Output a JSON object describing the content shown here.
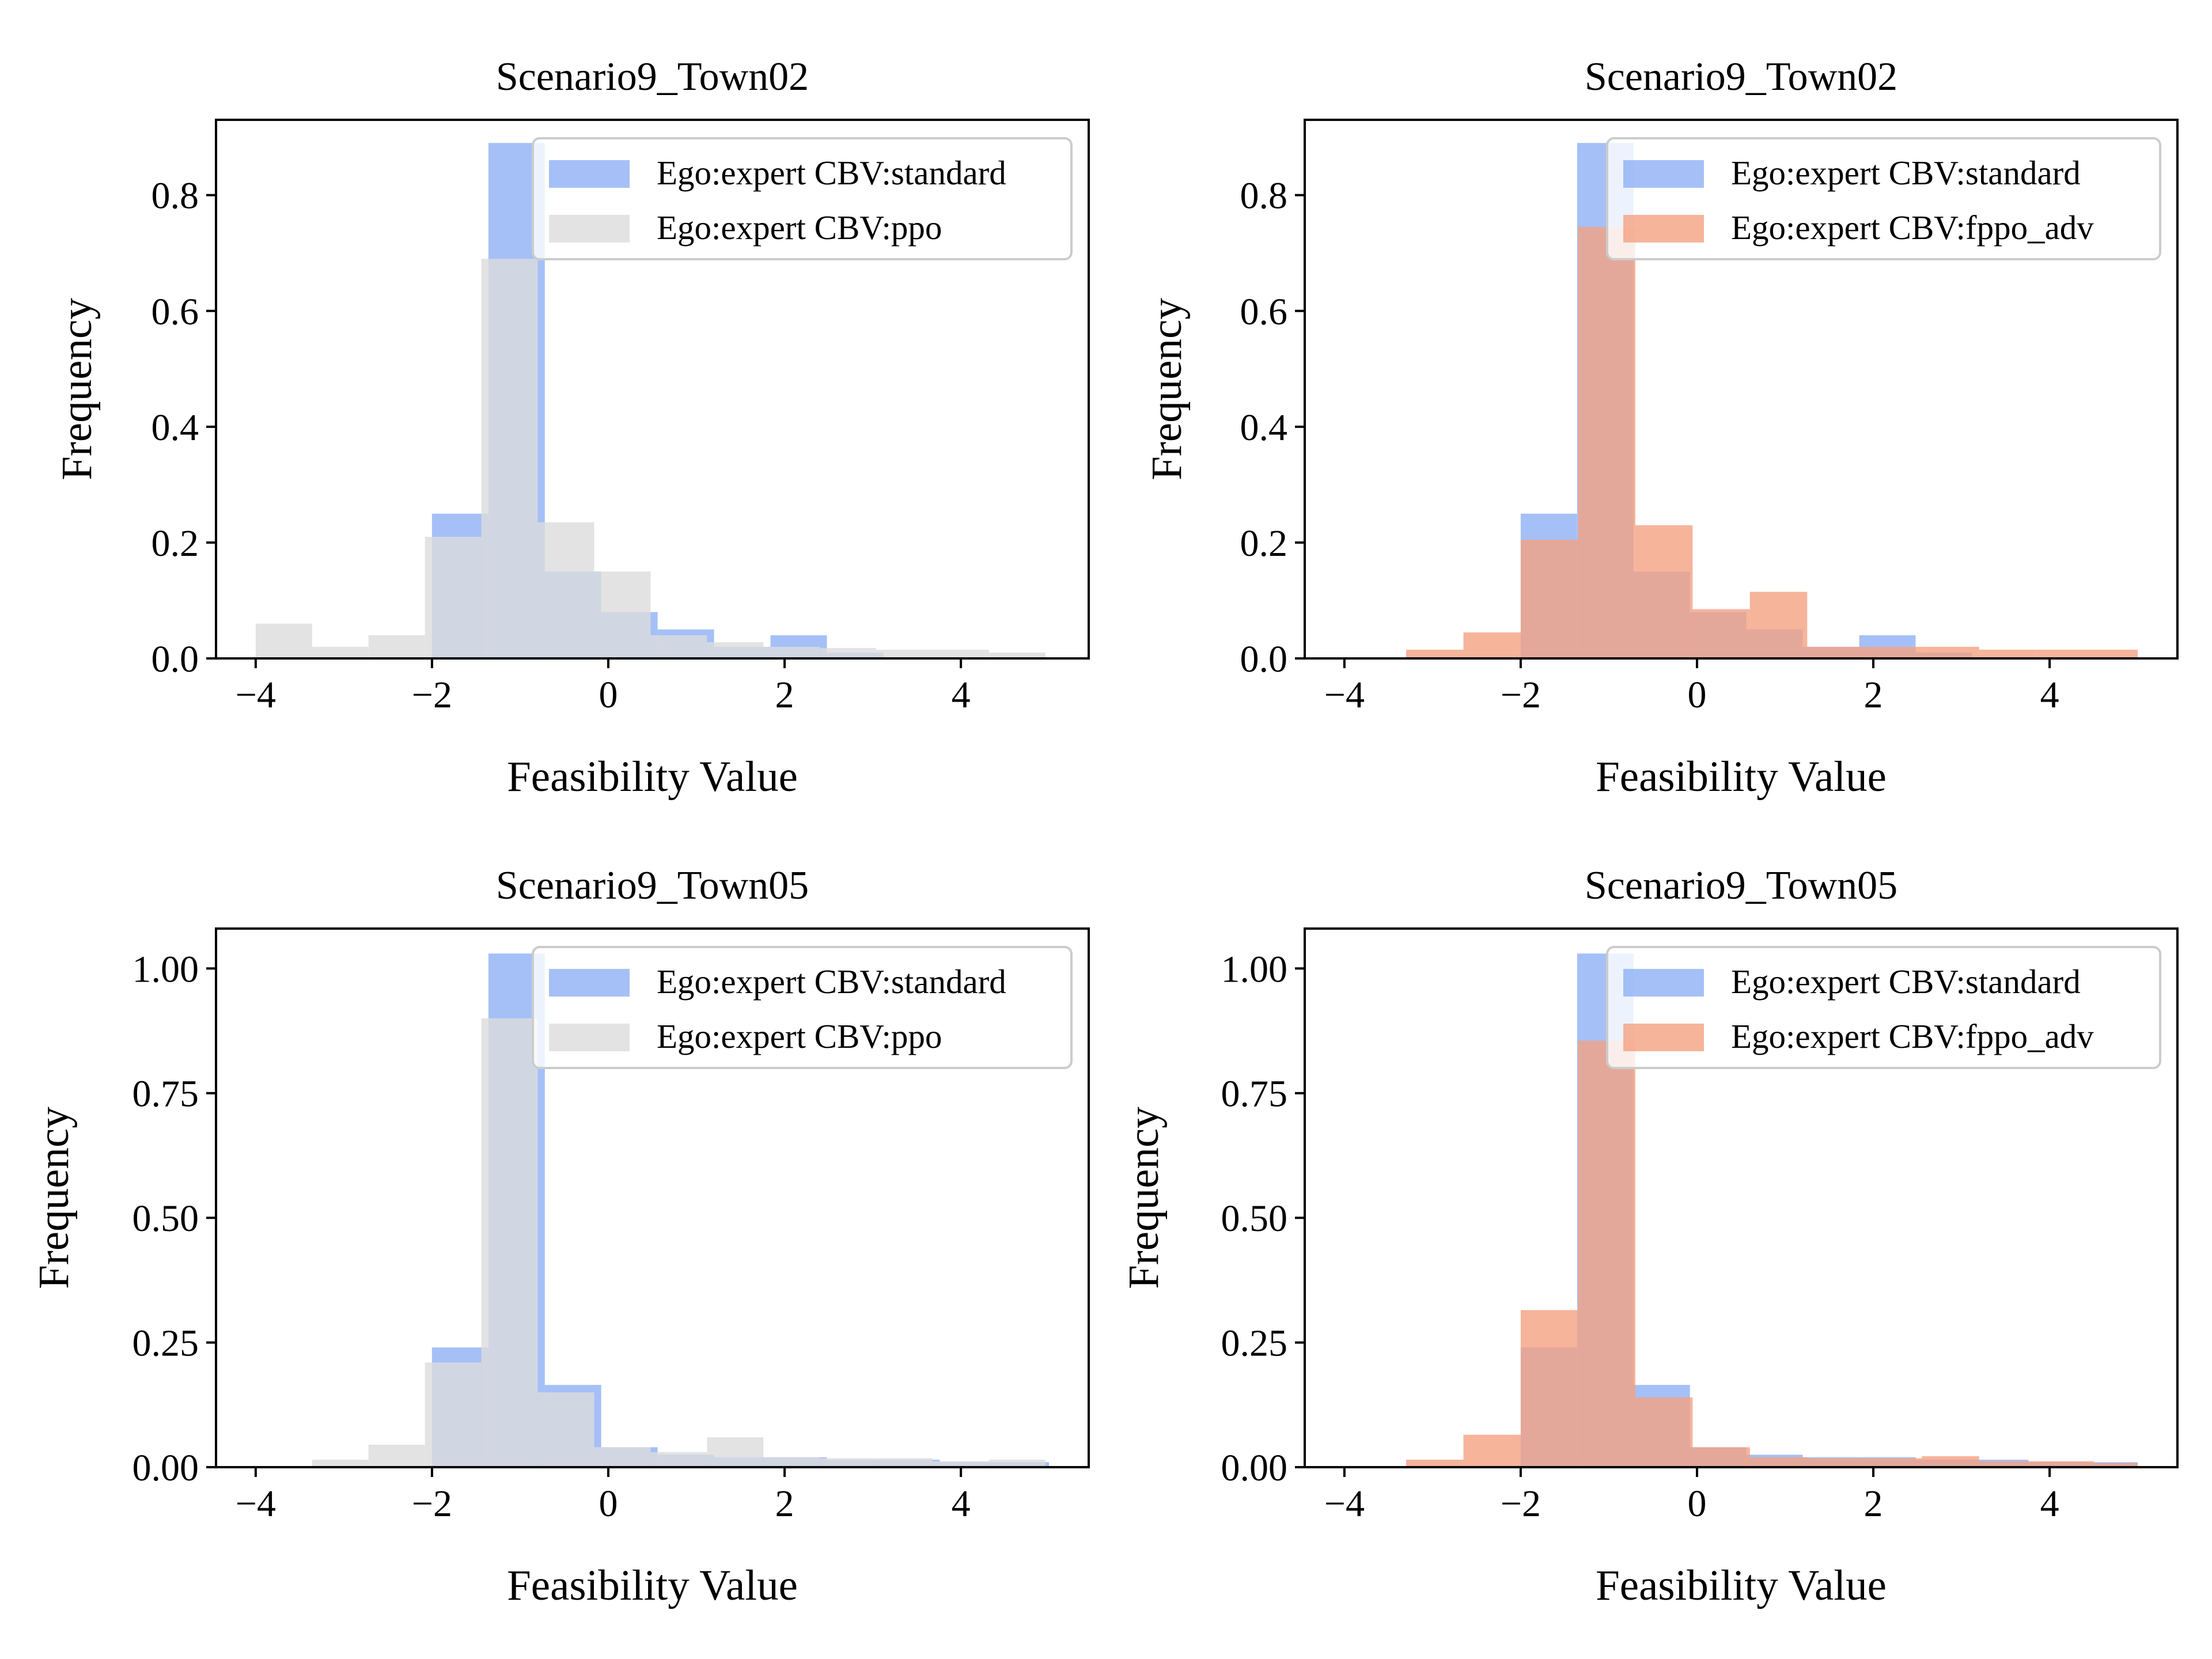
{
  "colors": {
    "standard": "#8fb0f5",
    "ppo": "#dcdcdc",
    "fppo_adv": "#f4a182"
  },
  "chart_data": [
    {
      "type": "bar",
      "title": "Scenario9_Town02",
      "xlabel": "Feasibility Value",
      "ylabel": "Frequency",
      "xlim": [
        -4.45,
        5.45
      ],
      "ylim": [
        0,
        0.93
      ],
      "xticks": [
        -4,
        -2,
        0,
        2,
        4
      ],
      "xtick_labels": [
        "−4",
        "−2",
        "0",
        "2",
        "4"
      ],
      "yticks": [
        0,
        0.2,
        0.4,
        0.6,
        0.8
      ],
      "ytick_labels": [
        "0.0",
        "0.2",
        "0.4",
        "0.6",
        "0.8"
      ],
      "legend_position": "top-right",
      "series": [
        {
          "name": "Ego:expert CBV:standard",
          "color": "standard",
          "bins": [
            [
              -2.0,
              -1.36,
              0.25
            ],
            [
              -1.36,
              -0.72,
              0.89
            ],
            [
              -0.72,
              -0.08,
              0.15
            ],
            [
              -0.08,
              0.56,
              0.08
            ],
            [
              0.56,
              1.2,
              0.05
            ],
            [
              1.2,
              1.84,
              0.02
            ],
            [
              1.84,
              2.48,
              0.04
            ],
            [
              2.48,
              3.12,
              0.01
            ]
          ]
        },
        {
          "name": "Ego:expert CBV:ppo",
          "color": "ppo",
          "bins": [
            [
              -4.0,
              -3.36,
              0.06
            ],
            [
              -3.36,
              -2.72,
              0.02
            ],
            [
              -2.72,
              -2.08,
              0.04
            ],
            [
              -2.08,
              -1.44,
              0.21
            ],
            [
              -1.44,
              -0.8,
              0.69
            ],
            [
              -0.8,
              -0.16,
              0.235
            ],
            [
              -0.16,
              0.48,
              0.15
            ],
            [
              0.48,
              1.12,
              0.04
            ],
            [
              1.12,
              1.76,
              0.028
            ],
            [
              1.76,
              2.4,
              0.02
            ],
            [
              2.4,
              3.04,
              0.018
            ],
            [
              3.04,
              3.68,
              0.015
            ],
            [
              3.68,
              4.32,
              0.015
            ],
            [
              4.32,
              4.96,
              0.01
            ]
          ]
        }
      ]
    },
    {
      "type": "bar",
      "title": "Scenario9_Town02",
      "xlabel": "Feasibility Value",
      "ylabel": "Frequency",
      "xlim": [
        -4.45,
        5.45
      ],
      "ylim": [
        0,
        0.93
      ],
      "xticks": [
        -4,
        -2,
        0,
        2,
        4
      ],
      "xtick_labels": [
        "−4",
        "−2",
        "0",
        "2",
        "4"
      ],
      "yticks": [
        0,
        0.2,
        0.4,
        0.6,
        0.8
      ],
      "ytick_labels": [
        "0.0",
        "0.2",
        "0.4",
        "0.6",
        "0.8"
      ],
      "legend_position": "top-right",
      "series": [
        {
          "name": "Ego:expert CBV:standard",
          "color": "standard",
          "bins": [
            [
              -2.0,
              -1.36,
              0.25
            ],
            [
              -1.36,
              -0.72,
              0.89
            ],
            [
              -0.72,
              -0.08,
              0.15
            ],
            [
              -0.08,
              0.56,
              0.08
            ],
            [
              0.56,
              1.2,
              0.05
            ],
            [
              1.2,
              1.84,
              0.02
            ],
            [
              1.84,
              2.48,
              0.04
            ],
            [
              2.48,
              3.12,
              0.01
            ]
          ]
        },
        {
          "name": "Ego:expert CBV:fppo_adv",
          "color": "fppo_adv",
          "bins": [
            [
              -3.3,
              -2.65,
              0.015
            ],
            [
              -2.65,
              -2.0,
              0.045
            ],
            [
              -2.0,
              -1.35,
              0.205
            ],
            [
              -1.35,
              -0.7,
              0.745
            ],
            [
              -0.7,
              -0.05,
              0.23
            ],
            [
              -0.05,
              0.6,
              0.085
            ],
            [
              0.6,
              1.25,
              0.115
            ],
            [
              1.25,
              1.9,
              0.02
            ],
            [
              1.9,
              2.55,
              0.02
            ],
            [
              2.55,
              3.2,
              0.02
            ],
            [
              3.2,
              3.85,
              0.015
            ],
            [
              3.85,
              4.5,
              0.015
            ],
            [
              4.5,
              5.0,
              0.015
            ]
          ]
        }
      ]
    },
    {
      "type": "bar",
      "title": "Scenario9_Town05",
      "xlabel": "Feasibility Value",
      "ylabel": "Frequency",
      "xlim": [
        -4.45,
        5.45
      ],
      "ylim": [
        0,
        1.08
      ],
      "xticks": [
        -4,
        -2,
        0,
        2,
        4
      ],
      "xtick_labels": [
        "−4",
        "−2",
        "0",
        "2",
        "4"
      ],
      "yticks": [
        0,
        0.25,
        0.5,
        0.75,
        1.0
      ],
      "ytick_labels": [
        "0.00",
        "0.25",
        "0.50",
        "0.75",
        "1.00"
      ],
      "legend_position": "top-right",
      "series": [
        {
          "name": "Ego:expert CBV:standard",
          "color": "standard",
          "bins": [
            [
              -2.0,
              -1.36,
              0.24
            ],
            [
              -1.36,
              -0.72,
              1.03
            ],
            [
              -0.72,
              -0.08,
              0.165
            ],
            [
              -0.08,
              0.56,
              0.04
            ],
            [
              0.56,
              1.2,
              0.025
            ],
            [
              1.2,
              1.84,
              0.02
            ],
            [
              1.84,
              2.48,
              0.02
            ],
            [
              2.48,
              3.12,
              0.015
            ],
            [
              3.12,
              3.76,
              0.015
            ],
            [
              3.76,
              4.4,
              0.01
            ],
            [
              4.4,
              5.0,
              0.01
            ]
          ]
        },
        {
          "name": "Ego:expert CBV:ppo",
          "color": "ppo",
          "bins": [
            [
              -3.36,
              -2.72,
              0.015
            ],
            [
              -2.72,
              -2.08,
              0.045
            ],
            [
              -2.08,
              -1.44,
              0.21
            ],
            [
              -1.44,
              -0.8,
              0.9
            ],
            [
              -0.8,
              -0.16,
              0.15
            ],
            [
              -0.16,
              0.48,
              0.04
            ],
            [
              0.48,
              1.12,
              0.03
            ],
            [
              1.12,
              1.76,
              0.06
            ],
            [
              1.76,
              2.4,
              0.02
            ],
            [
              2.4,
              3.04,
              0.018
            ],
            [
              3.04,
              3.68,
              0.018
            ],
            [
              3.68,
              4.32,
              0.012
            ],
            [
              4.32,
              4.96,
              0.015
            ]
          ]
        }
      ]
    },
    {
      "type": "bar",
      "title": "Scenario9_Town05",
      "xlabel": "Feasibility Value",
      "ylabel": "Frequency",
      "xlim": [
        -4.45,
        5.45
      ],
      "ylim": [
        0,
        1.08
      ],
      "xticks": [
        -4,
        -2,
        0,
        2,
        4
      ],
      "xtick_labels": [
        "−4",
        "−2",
        "0",
        "2",
        "4"
      ],
      "yticks": [
        0,
        0.25,
        0.5,
        0.75,
        1.0
      ],
      "ytick_labels": [
        "0.00",
        "0.25",
        "0.50",
        "0.75",
        "1.00"
      ],
      "legend_position": "top-right",
      "series": [
        {
          "name": "Ego:expert CBV:standard",
          "color": "standard",
          "bins": [
            [
              -2.0,
              -1.36,
              0.24
            ],
            [
              -1.36,
              -0.72,
              1.03
            ],
            [
              -0.72,
              -0.08,
              0.165
            ],
            [
              -0.08,
              0.56,
              0.04
            ],
            [
              0.56,
              1.2,
              0.025
            ],
            [
              1.2,
              1.84,
              0.02
            ],
            [
              1.84,
              2.48,
              0.02
            ],
            [
              2.48,
              3.12,
              0.015
            ],
            [
              3.12,
              3.76,
              0.015
            ],
            [
              3.76,
              4.4,
              0.01
            ],
            [
              4.4,
              5.0,
              0.01
            ]
          ]
        },
        {
          "name": "Ego:expert CBV:fppo_adv",
          "color": "fppo_adv",
          "bins": [
            [
              -3.3,
              -2.65,
              0.015
            ],
            [
              -2.65,
              -2.0,
              0.065
            ],
            [
              -2.0,
              -1.35,
              0.315
            ],
            [
              -1.35,
              -0.7,
              0.855
            ],
            [
              -0.7,
              -0.05,
              0.14
            ],
            [
              -0.05,
              0.6,
              0.04
            ],
            [
              0.6,
              1.25,
              0.02
            ],
            [
              1.25,
              1.9,
              0.018
            ],
            [
              1.9,
              2.55,
              0.018
            ],
            [
              2.55,
              3.2,
              0.022
            ],
            [
              3.2,
              3.85,
              0.012
            ],
            [
              3.85,
              4.5,
              0.012
            ],
            [
              4.5,
              5.0,
              0.008
            ]
          ]
        }
      ]
    }
  ]
}
